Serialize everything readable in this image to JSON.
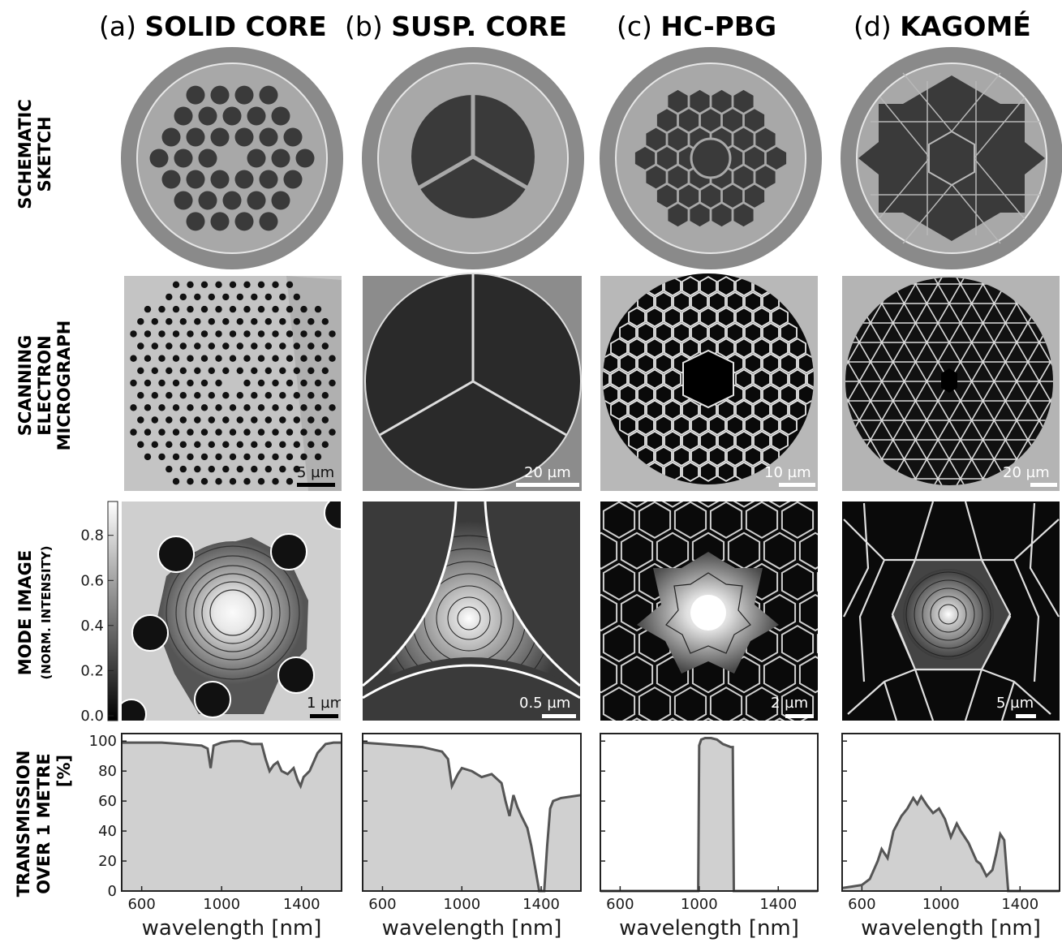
{
  "columns": [
    {
      "prefix": "(a) ",
      "name": "SOLID CORE",
      "sem_scale": "5 µm",
      "mode_scale": "1 µm"
    },
    {
      "prefix": "(b) ",
      "name": "SUSP. CORE",
      "sem_scale": "20 µm",
      "mode_scale": "0.5 µm"
    },
    {
      "prefix": "(c) ",
      "name": "HC-PBG",
      "sem_scale": "10 µm",
      "mode_scale": "2 µm"
    },
    {
      "prefix": "(d) ",
      "name": "KAGOMÉ",
      "sem_scale": "20 µm",
      "mode_scale": "5 µm"
    }
  ],
  "rows": {
    "schematic": [
      "SCHEMATIC",
      "SKETCH"
    ],
    "sem": [
      "SCANNING",
      "ELECTRON",
      "MICROGRAPH"
    ],
    "mode": [
      "MODE IMAGE",
      "(NORM. INTENSITY)"
    ],
    "transmission": [
      "TRANSMISSION",
      "OVER 1 METRE",
      "[%]"
    ]
  },
  "colorbar": {
    "ticks": [
      "0.0",
      "0.2",
      "0.4",
      "0.6",
      "0.8"
    ]
  },
  "colors": {
    "curve": "#555555",
    "fill": "#d0d0d0",
    "dark": "#3a3a3a",
    "clad": "#9a9a9a",
    "ring": "#808080"
  },
  "chart_data": [
    {
      "type": "area",
      "panel": "a",
      "xlabel": "wavelength [nm]",
      "ylabel": "TRANSMISSION OVER 1 METRE [%]",
      "xlim": [
        500,
        1600
      ],
      "ylim": [
        0,
        105
      ],
      "xticks": [
        600,
        1000,
        1400
      ],
      "yticks": [
        0,
        20,
        40,
        60,
        80,
        100
      ],
      "x": [
        500,
        600,
        700,
        800,
        900,
        930,
        945,
        960,
        1000,
        1050,
        1100,
        1150,
        1200,
        1220,
        1240,
        1260,
        1280,
        1300,
        1330,
        1360,
        1380,
        1395,
        1410,
        1440,
        1480,
        1520,
        1560,
        1600
      ],
      "y": [
        99,
        99,
        99,
        98,
        97,
        95,
        82,
        97,
        99,
        100,
        100,
        98,
        98,
        88,
        80,
        84,
        86,
        80,
        78,
        82,
        74,
        70,
        76,
        80,
        92,
        98,
        99,
        99
      ]
    },
    {
      "type": "area",
      "panel": "b",
      "xlabel": "wavelength [nm]",
      "xlim": [
        500,
        1600
      ],
      "ylim": [
        0,
        105
      ],
      "xticks": [
        600,
        1000,
        1400
      ],
      "yticks": [
        0,
        20,
        40,
        60,
        80,
        100
      ],
      "x": [
        500,
        600,
        700,
        800,
        900,
        930,
        950,
        980,
        1000,
        1050,
        1100,
        1150,
        1200,
        1220,
        1240,
        1260,
        1280,
        1300,
        1330,
        1350,
        1370,
        1390,
        1400,
        1415,
        1430,
        1445,
        1460,
        1500,
        1550,
        1600
      ],
      "y": [
        99,
        98,
        97,
        96,
        93,
        88,
        70,
        78,
        82,
        80,
        76,
        78,
        72,
        60,
        50,
        64,
        56,
        50,
        42,
        30,
        15,
        0,
        0,
        0,
        30,
        55,
        60,
        62,
        63,
        64
      ]
    },
    {
      "type": "area",
      "panel": "c",
      "xlabel": "wavelength [nm]",
      "xlim": [
        500,
        1600
      ],
      "ylim": [
        0,
        105
      ],
      "xticks": [
        600,
        1000,
        1400
      ],
      "yticks": [
        0,
        20,
        40,
        60,
        80,
        100
      ],
      "x": [
        500,
        900,
        995,
        1000,
        1010,
        1030,
        1060,
        1090,
        1120,
        1160,
        1170,
        1175,
        1200,
        1600
      ],
      "y": [
        0,
        0,
        0,
        97,
        101,
        102,
        102,
        101,
        98,
        96,
        96,
        0,
        0,
        0
      ]
    },
    {
      "type": "area",
      "panel": "d",
      "xlabel": "wavelength [nm]",
      "xlim": [
        500,
        1600
      ],
      "ylim": [
        0,
        105
      ],
      "xticks": [
        600,
        1000,
        1400
      ],
      "yticks": [
        0,
        20,
        40,
        60,
        80,
        100
      ],
      "x": [
        500,
        550,
        600,
        640,
        680,
        700,
        730,
        760,
        800,
        830,
        860,
        880,
        900,
        930,
        960,
        990,
        1020,
        1050,
        1080,
        1100,
        1140,
        1180,
        1200,
        1230,
        1260,
        1280,
        1300,
        1320,
        1340,
        1360,
        1600
      ],
      "y": [
        2,
        3,
        4,
        8,
        20,
        28,
        22,
        40,
        50,
        55,
        62,
        58,
        63,
        57,
        52,
        55,
        48,
        36,
        45,
        40,
        32,
        20,
        18,
        10,
        14,
        25,
        38,
        34,
        0,
        0,
        0
      ]
    }
  ]
}
